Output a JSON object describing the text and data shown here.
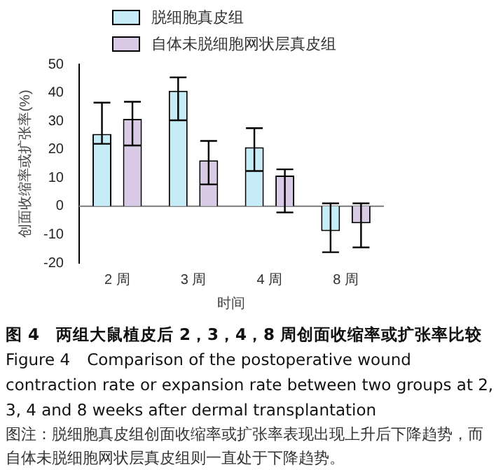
{
  "chart_data": {
    "type": "bar",
    "title": "图 4　两组大鼠植皮后 2，3，4，8 周创面收缩率或扩张率比较",
    "subtitle": "Figure 4　Comparison of the postoperative wound contraction rate or expansion rate between two groups at 2, 3, 4 and 8 weeks after dermal transplantation",
    "xlabel": "时间",
    "ylabel": "创面收缩率或扩张率(%)",
    "annotations": [
      "图注：脱细胞真皮组创面收缩率或扩张率表现出现上升后下降趋势，而自体未脱细胞网状层真皮组则一直处于下降趋势。"
    ],
    "categories": [
      "2 周",
      "3 周",
      "4 周",
      "8 周"
    ],
    "series": [
      {
        "name": "脱细胞真皮组",
        "color": "#c6ecf7",
        "values": [
          25.5,
          40.7,
          20.8,
          -8.8
        ],
        "errors": [
          [
            22,
            36.5
          ],
          [
            30.3,
            45.4
          ],
          [
            12.4,
            27.5
          ],
          [
            -16.2,
            1
          ]
        ]
      },
      {
        "name": "自体未脱细胞网状层真皮组",
        "color": "#d9cbe6",
        "values": [
          30.8,
          16.2,
          10.8,
          -6
        ],
        "errors": [
          [
            21.4,
            36.8
          ],
          [
            7.7,
            23
          ],
          [
            -2.2,
            13
          ],
          [
            -14.5,
            1
          ]
        ]
      }
    ],
    "ylim": [
      -20,
      50
    ],
    "yticks": [
      -20,
      -10,
      0,
      10,
      20,
      30,
      40,
      50
    ],
    "grid": false,
    "ref_lines": [
      {
        "axis": "y",
        "value": 0,
        "color": "#888888"
      }
    ],
    "legend": "top left"
  }
}
